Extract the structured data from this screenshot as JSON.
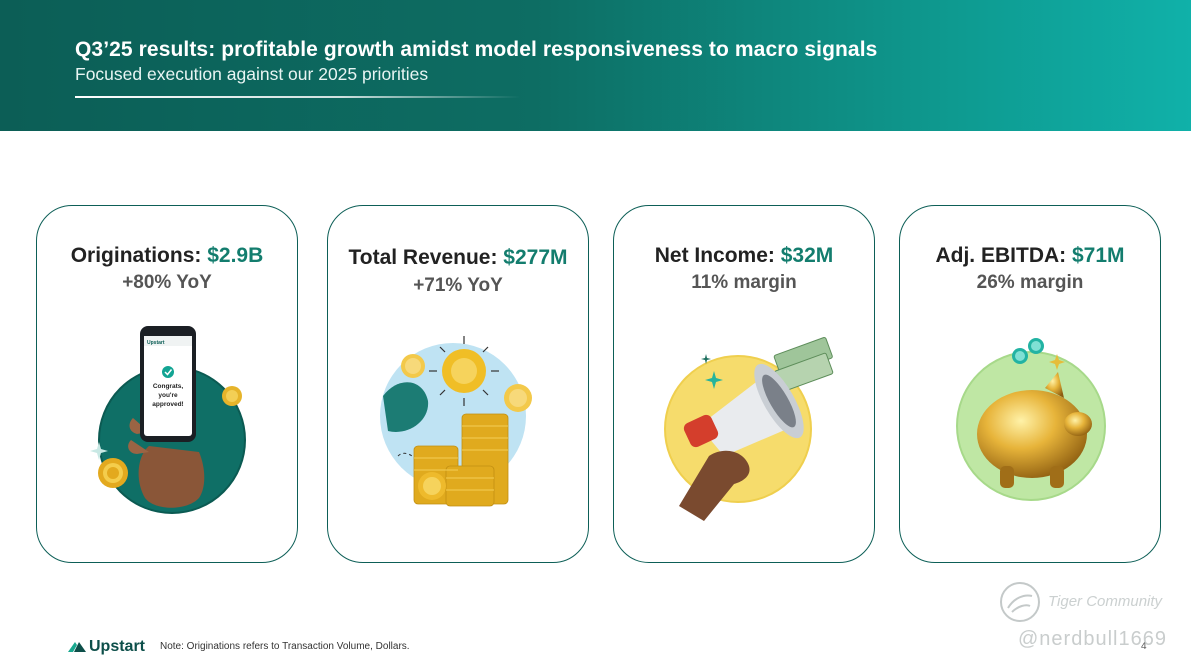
{
  "header": {
    "title": "Q3’25 results: profitable growth amidst model responsiveness to macro signals",
    "subtitle": "Focused execution against our 2025 priorities"
  },
  "cards": [
    {
      "label": "Originations: ",
      "value": "$2.9B",
      "sub": "+80% YoY",
      "phone": {
        "brand": "Upstart",
        "msg1": "Congrats,",
        "msg2": "you're",
        "msg3": "approved!"
      }
    },
    {
      "label": "Total Revenue: ",
      "value": "$277M",
      "sub": "+71% YoY"
    },
    {
      "label": "Net Income: ",
      "value": "$32M",
      "sub": "11% margin"
    },
    {
      "label": "Adj. EBITDA: ",
      "value": "$71M",
      "sub": "26% margin"
    }
  ],
  "footer": {
    "logo": "Upstart",
    "note": "Note: Originations refers to Transaction Volume, Dollars.",
    "page": "4"
  },
  "watermark": {
    "text": "Tiger Community",
    "user": "@nerdbull1669"
  },
  "colors": {
    "brand_teal": "#0d5f57",
    "value_teal": "#137d6e",
    "header_start": "#0c5e56",
    "header_end": "#10b1a9"
  }
}
